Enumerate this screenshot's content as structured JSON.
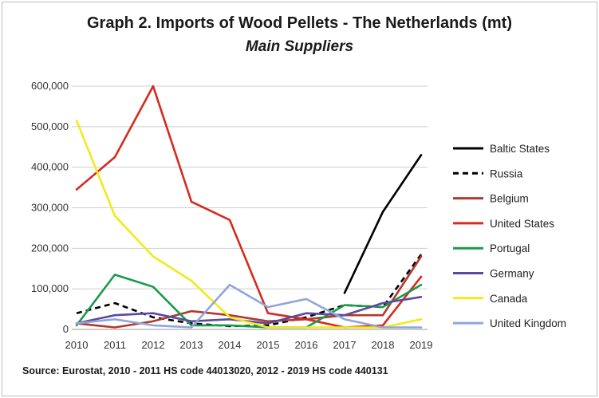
{
  "chart_data": {
    "type": "line",
    "title": "Graph 2. Imports of Wood Pellets - The Netherlands (mt)",
    "subtitle": "Main Suppliers",
    "source": "Source: Eurostat, 2010 - 2011 HS code 44013020, 2012 - 2019 HS code 440131",
    "xlabel": "",
    "ylabel": "",
    "x": [
      "2010",
      "2011",
      "2012",
      "2013",
      "2014",
      "2015",
      "2016",
      "2017",
      "2018",
      "2019"
    ],
    "ylim": [
      0,
      600000
    ],
    "yticks": [
      0,
      100000,
      200000,
      300000,
      400000,
      500000,
      600000
    ],
    "ytick_labels": [
      "0",
      "100,000",
      "200,000",
      "300,000",
      "400,000",
      "500,000",
      "600,000"
    ],
    "grid": true,
    "legend_position": "right",
    "series": [
      {
        "name": "Baltic States",
        "color": "#000000",
        "dash": "solid",
        "values": [
          null,
          null,
          null,
          null,
          null,
          null,
          null,
          90000,
          290000,
          430000
        ]
      },
      {
        "name": "Russia",
        "color": "#000000",
        "dash": "dashed",
        "values": [
          40000,
          65000,
          30000,
          15000,
          8000,
          10000,
          30000,
          60000,
          55000,
          185000
        ]
      },
      {
        "name": "Belgium",
        "color": "#b03a2e",
        "dash": "solid",
        "values": [
          15000,
          5000,
          20000,
          45000,
          35000,
          20000,
          25000,
          35000,
          35000,
          180000
        ]
      },
      {
        "name": "United States",
        "color": "#d62a1e",
        "dash": "solid",
        "values": [
          345000,
          425000,
          600000,
          315000,
          270000,
          40000,
          25000,
          5000,
          10000,
          130000
        ]
      },
      {
        "name": "Portugal",
        "color": "#1a9b4b",
        "dash": "solid",
        "values": [
          10000,
          135000,
          105000,
          10000,
          10000,
          5000,
          5000,
          60000,
          55000,
          110000
        ]
      },
      {
        "name": "Germany",
        "color": "#5b4a9e",
        "dash": "solid",
        "values": [
          15000,
          35000,
          40000,
          20000,
          25000,
          15000,
          40000,
          35000,
          65000,
          80000
        ]
      },
      {
        "name": "Canada",
        "color": "#f2ea1c",
        "dash": "solid",
        "values": [
          515000,
          280000,
          180000,
          120000,
          30000,
          5000,
          5000,
          5000,
          5000,
          25000
        ]
      },
      {
        "name": "United Kingdom",
        "color": "#8fa6d8",
        "dash": "solid",
        "values": [
          15000,
          25000,
          10000,
          5000,
          110000,
          55000,
          75000,
          25000,
          5000,
          5000
        ]
      }
    ]
  }
}
